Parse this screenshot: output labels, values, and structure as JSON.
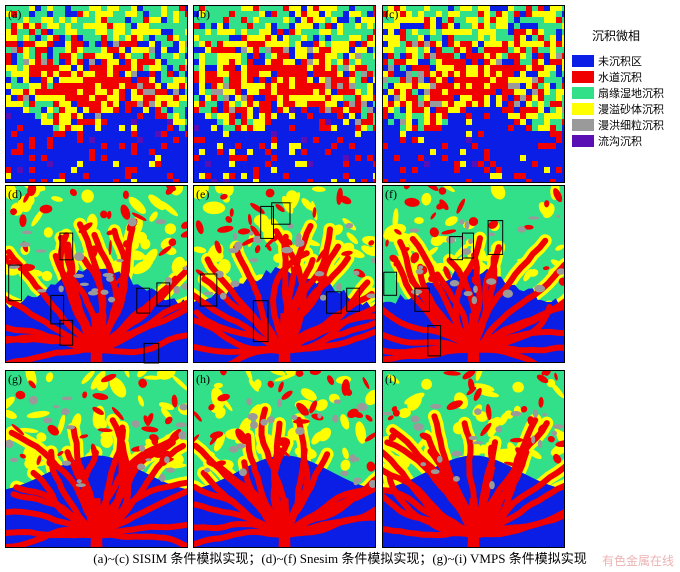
{
  "legend": {
    "title": "沉积微相",
    "items": [
      {
        "label": "未沉积区",
        "color": "#0a1ee6"
      },
      {
        "label": "水道沉积",
        "color": "#f00000"
      },
      {
        "label": "扇缘湿地沉积",
        "color": "#33e08a"
      },
      {
        "label": "漫溢砂体沉积",
        "color": "#ffff00"
      },
      {
        "label": "漫洪细粒沉积",
        "color": "#9a9a9a"
      },
      {
        "label": "流沟沉积",
        "color": "#5a0fb4"
      }
    ]
  },
  "panels": [
    {
      "label": "(a)",
      "method": "SISIM",
      "boxes": []
    },
    {
      "label": "(b)",
      "method": "SISIM",
      "boxes": []
    },
    {
      "label": "(c)",
      "method": "SISIM",
      "boxes": []
    },
    {
      "label": "(d)",
      "method": "Snesim",
      "boxes": [
        [
          0.02,
          0.45,
          0.09,
          0.65
        ],
        [
          0.3,
          0.27,
          0.37,
          0.42
        ],
        [
          0.25,
          0.62,
          0.32,
          0.78
        ],
        [
          0.3,
          0.76,
          0.37,
          0.9
        ],
        [
          0.72,
          0.58,
          0.79,
          0.72
        ],
        [
          0.83,
          0.55,
          0.9,
          0.68
        ],
        [
          0.76,
          0.89,
          0.84,
          1.0
        ]
      ]
    },
    {
      "label": "(e)",
      "method": "Snesim",
      "boxes": [
        [
          0.37,
          0.12,
          0.44,
          0.3
        ],
        [
          0.43,
          0.1,
          0.53,
          0.22
        ],
        [
          0.04,
          0.5,
          0.13,
          0.68
        ],
        [
          0.33,
          0.65,
          0.41,
          0.88
        ],
        [
          0.73,
          0.6,
          0.81,
          0.72
        ],
        [
          0.84,
          0.58,
          0.91,
          0.71
        ]
      ]
    },
    {
      "label": "(f)",
      "method": "Snesim",
      "boxes": [
        [
          0.58,
          0.2,
          0.66,
          0.39
        ],
        [
          0.37,
          0.29,
          0.44,
          0.42
        ],
        [
          0.44,
          0.27,
          0.5,
          0.41
        ],
        [
          0.01,
          0.49,
          0.08,
          0.62
        ],
        [
          0.18,
          0.58,
          0.26,
          0.71
        ],
        [
          0.25,
          0.79,
          0.32,
          0.96
        ]
      ]
    },
    {
      "label": "(g)",
      "method": "VMPS",
      "boxes": []
    },
    {
      "label": "(h)",
      "method": "VMPS",
      "boxes": []
    },
    {
      "label": "(i)",
      "method": "VMPS",
      "boxes": []
    }
  ],
  "caption": "(a)~(c) SISIM 条件模拟实现；(d)~(f) Snesim 条件模拟实现；(g)~(i) VMPS 条件模拟实现",
  "watermark": "有色金属在线"
}
